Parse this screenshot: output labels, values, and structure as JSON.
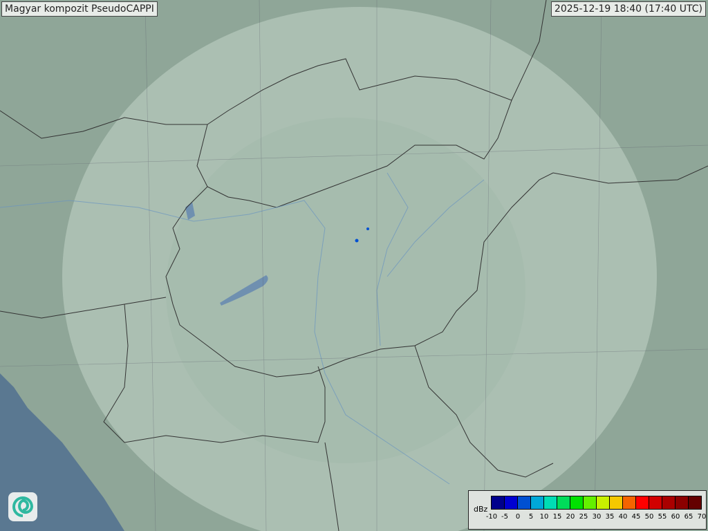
{
  "header": {
    "title": "Magyar kompozit  PseudoCAPPI",
    "timestamp": "2025-12-19 18:40 (17:40 UTC)"
  },
  "legend": {
    "unit": "dBz",
    "ticks": [
      "-10",
      "-5",
      "0",
      "5",
      "10",
      "15",
      "20",
      "25",
      "30",
      "35",
      "40",
      "45",
      "50",
      "55",
      "60",
      "65",
      "70"
    ],
    "colors": [
      "#00008c",
      "#0000d2",
      "#0050d2",
      "#00a8d8",
      "#00dcb4",
      "#00dc5a",
      "#00e100",
      "#64f000",
      "#c8f000",
      "#f5c800",
      "#f56400",
      "#ff0000",
      "#d20000",
      "#aa0000",
      "#8c0000",
      "#640000"
    ]
  },
  "logo": {
    "name": "met-service-swirl-logo"
  },
  "map": {
    "land_color": "#93aa9c",
    "radar_coverage_color": "#b4c8bc",
    "sea_color": "#5a7891",
    "echo_color": "#0050d2"
  }
}
